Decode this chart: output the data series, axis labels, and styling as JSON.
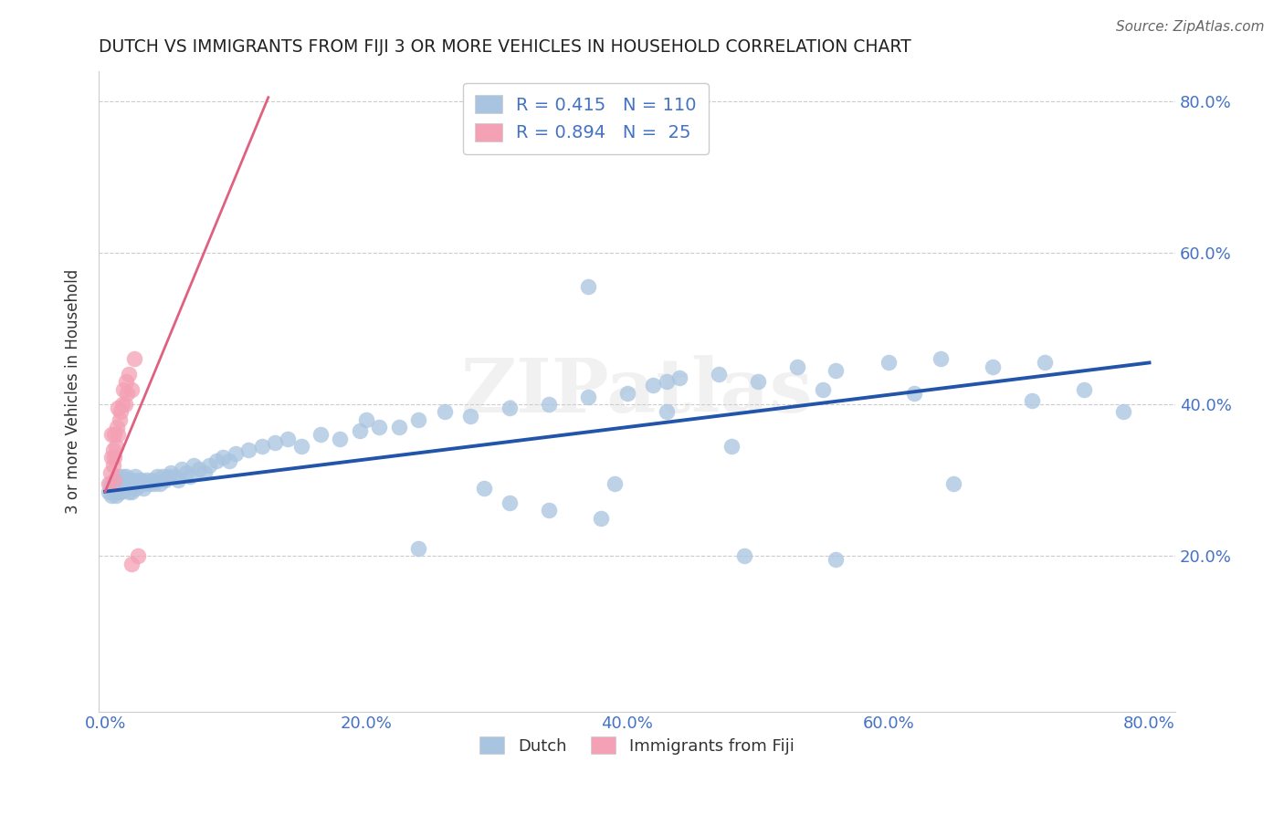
{
  "title": "DUTCH VS IMMIGRANTS FROM FIJI 3 OR MORE VEHICLES IN HOUSEHOLD CORRELATION CHART",
  "source": "Source: ZipAtlas.com",
  "ylabel": "3 or more Vehicles in Household",
  "xlim": [
    -0.005,
    0.82
  ],
  "ylim": [
    -0.005,
    0.84
  ],
  "xticks": [
    0.0,
    0.2,
    0.4,
    0.6,
    0.8
  ],
  "yticks": [
    0.2,
    0.4,
    0.6,
    0.8
  ],
  "xticklabels": [
    "0.0%",
    "20.0%",
    "40.0%",
    "60.0%",
    "80.0%"
  ],
  "yticklabels": [
    "20.0%",
    "40.0%",
    "60.0%",
    "80.0%"
  ],
  "legend_R_dutch": "R = 0.415",
  "legend_N_dutch": "N = 110",
  "legend_R_fiji": "R = 0.894",
  "legend_N_fiji": "N =  25",
  "dutch_color": "#a8c4e0",
  "fiji_color": "#f4a0b5",
  "dutch_line_color": "#2255aa",
  "fiji_line_color": "#e06080",
  "legend_text_color": "#4472c4",
  "watermark": "ZIPatlas",
  "dutch_x": [
    0.003,
    0.004,
    0.005,
    0.006,
    0.007,
    0.007,
    0.008,
    0.008,
    0.009,
    0.009,
    0.01,
    0.01,
    0.011,
    0.011,
    0.012,
    0.012,
    0.013,
    0.013,
    0.014,
    0.014,
    0.015,
    0.015,
    0.016,
    0.016,
    0.017,
    0.017,
    0.018,
    0.018,
    0.019,
    0.02,
    0.02,
    0.021,
    0.022,
    0.023,
    0.024,
    0.025,
    0.026,
    0.027,
    0.028,
    0.029,
    0.03,
    0.032,
    0.034,
    0.036,
    0.038,
    0.04,
    0.042,
    0.044,
    0.046,
    0.048,
    0.05,
    0.053,
    0.056,
    0.059,
    0.062,
    0.065,
    0.068,
    0.072,
    0.076,
    0.08,
    0.085,
    0.09,
    0.095,
    0.1,
    0.11,
    0.12,
    0.13,
    0.14,
    0.15,
    0.165,
    0.18,
    0.195,
    0.21,
    0.225,
    0.24,
    0.26,
    0.28,
    0.31,
    0.34,
    0.37,
    0.4,
    0.42,
    0.44,
    0.47,
    0.5,
    0.53,
    0.56,
    0.6,
    0.64,
    0.68,
    0.72,
    0.34,
    0.43,
    0.48,
    0.55,
    0.39,
    0.29,
    0.38,
    0.56,
    0.65,
    0.71,
    0.75,
    0.78,
    0.49,
    0.37,
    0.62,
    0.24,
    0.31,
    0.2,
    0.43
  ],
  "dutch_y": [
    0.285,
    0.295,
    0.28,
    0.295,
    0.285,
    0.295,
    0.28,
    0.295,
    0.29,
    0.3,
    0.295,
    0.305,
    0.285,
    0.295,
    0.285,
    0.295,
    0.295,
    0.305,
    0.295,
    0.3,
    0.29,
    0.3,
    0.295,
    0.305,
    0.29,
    0.3,
    0.285,
    0.295,
    0.3,
    0.285,
    0.295,
    0.3,
    0.295,
    0.305,
    0.29,
    0.295,
    0.3,
    0.295,
    0.3,
    0.29,
    0.295,
    0.3,
    0.295,
    0.3,
    0.295,
    0.305,
    0.295,
    0.305,
    0.3,
    0.305,
    0.31,
    0.305,
    0.3,
    0.315,
    0.31,
    0.305,
    0.32,
    0.315,
    0.31,
    0.32,
    0.325,
    0.33,
    0.325,
    0.335,
    0.34,
    0.345,
    0.35,
    0.355,
    0.345,
    0.36,
    0.355,
    0.365,
    0.37,
    0.37,
    0.38,
    0.39,
    0.385,
    0.395,
    0.4,
    0.41,
    0.415,
    0.425,
    0.435,
    0.44,
    0.43,
    0.45,
    0.445,
    0.455,
    0.46,
    0.45,
    0.455,
    0.26,
    0.39,
    0.345,
    0.42,
    0.295,
    0.29,
    0.25,
    0.195,
    0.295,
    0.405,
    0.42,
    0.39,
    0.2,
    0.555,
    0.415,
    0.21,
    0.27,
    0.38,
    0.43
  ],
  "fiji_x": [
    0.003,
    0.004,
    0.005,
    0.006,
    0.007,
    0.007,
    0.008,
    0.009,
    0.01,
    0.01,
    0.011,
    0.012,
    0.013,
    0.014,
    0.015,
    0.016,
    0.017,
    0.018,
    0.02,
    0.022,
    0.025,
    0.007,
    0.005,
    0.006,
    0.02
  ],
  "fiji_y": [
    0.295,
    0.31,
    0.33,
    0.34,
    0.3,
    0.36,
    0.345,
    0.37,
    0.36,
    0.395,
    0.38,
    0.39,
    0.4,
    0.42,
    0.4,
    0.43,
    0.415,
    0.44,
    0.42,
    0.46,
    0.2,
    0.33,
    0.36,
    0.32,
    0.19
  ],
  "dutch_trendline_x": [
    0.0,
    0.8
  ],
  "dutch_trendline_y": [
    0.285,
    0.455
  ],
  "fiji_trendline_x": [
    0.0,
    0.125
  ],
  "fiji_trendline_y": [
    0.285,
    0.805
  ],
  "background_color": "#ffffff",
  "grid_color": "#cccccc",
  "figsize": [
    14.06,
    8.92
  ],
  "dpi": 100
}
